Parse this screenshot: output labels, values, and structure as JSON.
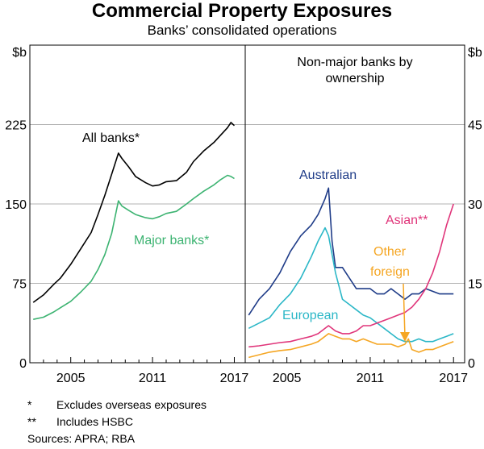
{
  "title": "Commercial Property Exposures",
  "subtitle": "Banks’ consolidated operations",
  "colors": {
    "black": "#000000",
    "major": "#3cb371",
    "australian": "#1f3c88",
    "european": "#2bb7c7",
    "asian": "#e0357a",
    "other": "#f5a623",
    "grid": "#b3b3b3"
  },
  "chart_data": [
    {
      "type": "line",
      "unit": "$b",
      "ylim": [
        0,
        300
      ],
      "yticks": [
        "0",
        "75",
        "150",
        "225"
      ],
      "xlim": [
        2002,
        2017.8
      ],
      "xticks": [
        "2005",
        "2011",
        "2017"
      ],
      "grid": true,
      "series": [
        {
          "name": "All banks*",
          "color": "#000000",
          "x": [
            2002.25,
            2003.0,
            2003.75,
            2004.25,
            2005.0,
            2005.75,
            2006.5,
            2007.0,
            2007.5,
            2008.0,
            2008.5,
            2008.75,
            2009.25,
            2009.75,
            2010.5,
            2011.0,
            2011.5,
            2012.0,
            2012.75,
            2013.5,
            2014.0,
            2014.75,
            2015.5,
            2016.0,
            2016.5,
            2016.75,
            2017.0
          ],
          "y": [
            57,
            64,
            74,
            80,
            93,
            108,
            123,
            140,
            158,
            178,
            198,
            193,
            185,
            176,
            170,
            167,
            168,
            171,
            172,
            180,
            190,
            200,
            208,
            215,
            222,
            227,
            224
          ]
        },
        {
          "name": "Major banks*",
          "color": "#3cb371",
          "x": [
            2002.25,
            2003.0,
            2003.75,
            2004.25,
            2005.0,
            2005.75,
            2006.5,
            2007.0,
            2007.5,
            2008.0,
            2008.5,
            2008.75,
            2009.25,
            2009.75,
            2010.5,
            2011.0,
            2011.5,
            2012.0,
            2012.75,
            2013.5,
            2014.0,
            2014.75,
            2015.5,
            2016.0,
            2016.5,
            2016.75,
            2017.0
          ],
          "y": [
            41,
            43,
            48,
            52,
            58,
            67,
            77,
            88,
            102,
            122,
            153,
            148,
            144,
            140,
            137,
            136,
            138,
            141,
            143,
            150,
            155,
            162,
            168,
            173,
            177,
            176,
            174
          ]
        }
      ]
    },
    {
      "type": "line",
      "unit": "$b",
      "title": "Non-major banks by ownership",
      "ylim": [
        0,
        60
      ],
      "yticks": [
        "0",
        "15",
        "30",
        "45"
      ],
      "xlim": [
        2002,
        2017.8
      ],
      "xticks": [
        "2005",
        "2011",
        "2017"
      ],
      "grid": true,
      "series": [
        {
          "name": "Australian",
          "color": "#1f3c88",
          "x": [
            2002.25,
            2003.0,
            2003.75,
            2004.5,
            2005.25,
            2006.0,
            2006.75,
            2007.25,
            2007.75,
            2008.0,
            2008.25,
            2008.5,
            2009.0,
            2009.5,
            2010.0,
            2010.5,
            2011.0,
            2011.5,
            2012.0,
            2012.5,
            2013.0,
            2013.5,
            2014.0,
            2014.5,
            2015.0,
            2015.5,
            2016.0,
            2016.5,
            2017.0
          ],
          "y": [
            9,
            12,
            14,
            17,
            21,
            24,
            26,
            28,
            31,
            33,
            23,
            18,
            18,
            16,
            14,
            14,
            14,
            13,
            13,
            14,
            13,
            12,
            13,
            13,
            14,
            13.5,
            13,
            13,
            13
          ]
        },
        {
          "name": "European",
          "color": "#2bb7c7",
          "x": [
            2002.25,
            2003.0,
            2003.75,
            2004.5,
            2005.25,
            2006.0,
            2006.75,
            2007.25,
            2007.75,
            2008.0,
            2008.5,
            2009.0,
            2009.5,
            2010.0,
            2010.5,
            2011.0,
            2011.5,
            2012.0,
            2012.5,
            2013.0,
            2013.5,
            2014.0,
            2014.5,
            2015.0,
            2015.5,
            2016.0,
            2016.5,
            2017.0
          ],
          "y": [
            6.5,
            7.5,
            8.5,
            11,
            13,
            16,
            20,
            23,
            25.5,
            24,
            17,
            12,
            11,
            10,
            9,
            8.5,
            7.5,
            6.5,
            5.5,
            4.5,
            4,
            4,
            4.5,
            4,
            4,
            4.5,
            5,
            5.5
          ]
        },
        {
          "name": "Asian**",
          "color": "#e0357a",
          "x": [
            2002.25,
            2003.0,
            2003.75,
            2004.5,
            2005.25,
            2006.0,
            2006.75,
            2007.25,
            2007.75,
            2008.0,
            2008.5,
            2009.0,
            2009.5,
            2010.0,
            2010.5,
            2011.0,
            2011.5,
            2012.0,
            2012.5,
            2013.0,
            2013.5,
            2014.0,
            2014.5,
            2015.0,
            2015.5,
            2016.0,
            2016.5,
            2017.0
          ],
          "y": [
            3,
            3.2,
            3.5,
            3.8,
            4,
            4.5,
            5,
            5.5,
            6.5,
            7,
            6,
            5.5,
            5.5,
            6,
            7,
            7,
            7.5,
            8,
            8.5,
            9,
            9.5,
            10.5,
            12,
            14,
            17,
            21,
            26,
            30
          ]
        },
        {
          "name": "Other foreign",
          "color": "#f5a623",
          "x": [
            2002.25,
            2003.0,
            2003.75,
            2004.5,
            2005.25,
            2006.0,
            2006.75,
            2007.25,
            2007.75,
            2008.0,
            2008.5,
            2009.0,
            2009.5,
            2010.0,
            2010.5,
            2011.0,
            2011.5,
            2012.0,
            2012.5,
            2013.0,
            2013.5,
            2013.75,
            2014.0,
            2014.5,
            2015.0,
            2015.5,
            2016.0,
            2016.5,
            2017.0
          ],
          "y": [
            1,
            1.5,
            2,
            2.3,
            2.5,
            3,
            3.5,
            4,
            5,
            5.5,
            5,
            4.5,
            4.5,
            4,
            4.5,
            4,
            3.5,
            3.5,
            3.5,
            3,
            3.5,
            4.5,
            2.5,
            2,
            2.5,
            2.5,
            3,
            3.5,
            4
          ]
        }
      ]
    }
  ],
  "footnotes": [
    {
      "mark": "*",
      "text": "Excludes overseas exposures"
    },
    {
      "mark": "**",
      "text": "Includes HSBC"
    }
  ],
  "sources": "Sources: APRA; RBA"
}
